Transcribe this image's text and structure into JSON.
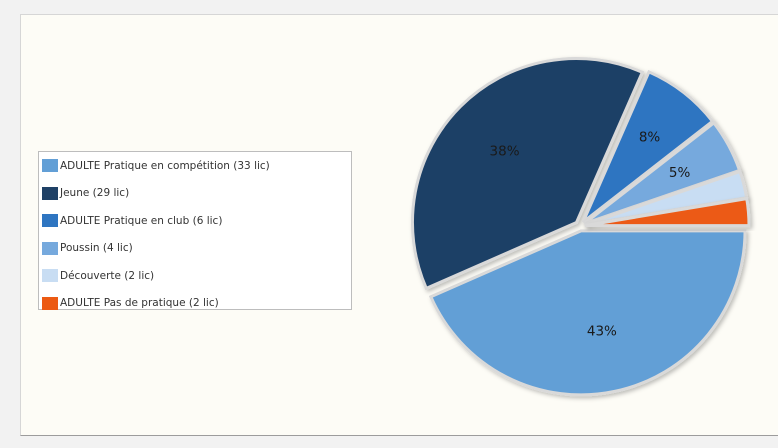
{
  "chart_data": {
    "type": "pie",
    "slices": [
      {
        "label": "ADULTE Pratique en compétition (33 lic)",
        "value": 33,
        "color": "#629fd6",
        "pct_label": "43%"
      },
      {
        "label": "Jeune (29 lic)",
        "value": 29,
        "color": "#1f4166",
        "pct_label": "38%"
      },
      {
        "label": "ADULTE Pratique en club (6 lic)",
        "value": 6,
        "color": "#2e75c1",
        "pct_label": "8%"
      },
      {
        "label": "Poussin (4 lic)",
        "value": 4,
        "color": "#76a9dd",
        "pct_label": "5%"
      },
      {
        "label": "Découverte (2 lic)",
        "value": 2,
        "color": "#c8ddf3",
        "pct_label": ""
      },
      {
        "label": "ADULTE Pas de pratique (2 lic)",
        "value": 2,
        "color": "#ec5a13",
        "pct_label": ""
      }
    ],
    "legend_position": "left"
  }
}
